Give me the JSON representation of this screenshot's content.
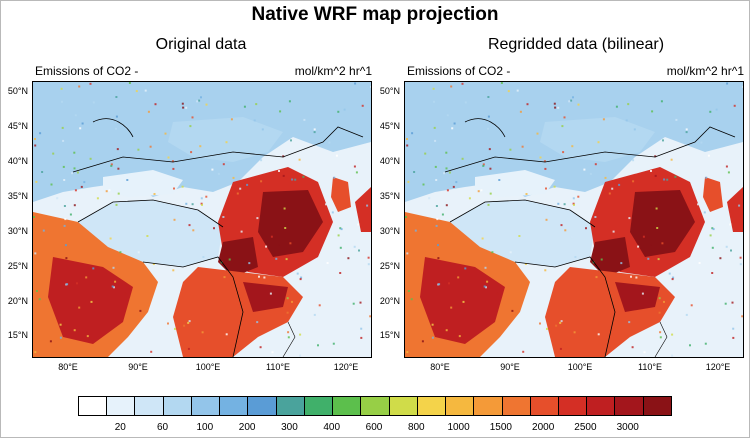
{
  "title": "Native WRF map projection",
  "panels": [
    {
      "subtitle": "Original data",
      "variable": "Emissions of CO2 -",
      "units": "mol/km^2 hr^1"
    },
    {
      "subtitle": "Regridded data (bilinear)",
      "variable": "Emissions of CO2 -",
      "units": "mol/km^2 hr^1"
    }
  ],
  "lat_ticks": [
    "50°N",
    "45°N",
    "40°N",
    "35°N",
    "30°N",
    "25°N",
    "20°N",
    "15°N"
  ],
  "lon_ticks": [
    "80°E",
    "90°E",
    "100°E",
    "110°E",
    "120°E"
  ],
  "colorbar": {
    "labels": [
      "20",
      "60",
      "100",
      "200",
      "300",
      "400",
      "600",
      "800",
      "1000",
      "1500",
      "2000",
      "2500",
      "3000"
    ],
    "colors": [
      "#ffffff",
      "#e6f2fb",
      "#cfe6f7",
      "#b3d8f1",
      "#93c5ea",
      "#74b2e2",
      "#5a9cd6",
      "#4aa39c",
      "#40b06a",
      "#5cbf4c",
      "#97cf46",
      "#d0dc49",
      "#f4d34a",
      "#f5b83f",
      "#f49a38",
      "#ef7531",
      "#e64f2b",
      "#d42f25",
      "#bf1f21",
      "#a3161c",
      "#8a1216"
    ]
  }
}
